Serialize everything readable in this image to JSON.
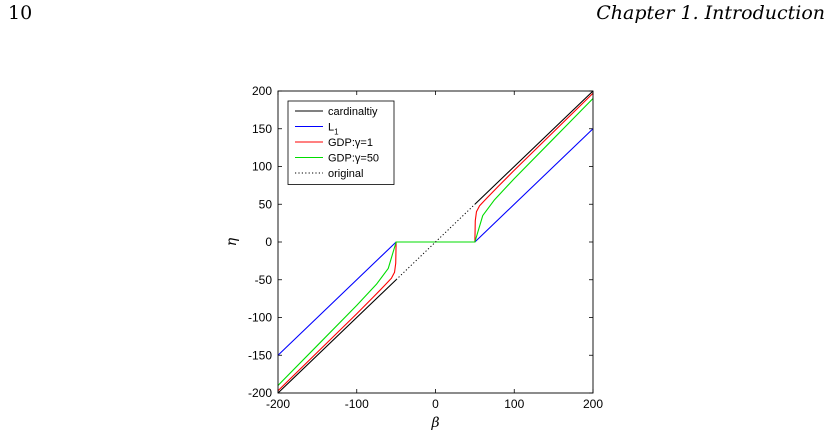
{
  "page": {
    "page_number": "10",
    "running_head": "Chapter 1.  Introduction"
  },
  "chart_data": {
    "type": "line",
    "xlabel": "β",
    "ylabel": "η",
    "xlim": [
      -200,
      200
    ],
    "ylim": [
      -200,
      200
    ],
    "xticks": [
      "-200",
      "-100",
      "0",
      "100",
      "200"
    ],
    "yticks": [
      "200",
      "150",
      "100",
      "50",
      "0",
      "-50",
      "-100",
      "-150",
      "-200"
    ],
    "legend_position": "top-left",
    "series": [
      {
        "name": "cardinaltiy",
        "name_sub": "",
        "color": "#000000",
        "style": "solid",
        "segments": [
          [
            [
              -200,
              -200
            ],
            [
              -50,
              -50
            ]
          ],
          [
            [
              -50,
              0
            ],
            [
              50,
              0
            ]
          ],
          [
            [
              50,
              50
            ],
            [
              200,
              200
            ]
          ]
        ]
      },
      {
        "name": "L",
        "name_sub": "1",
        "color": "#0000ff",
        "style": "solid",
        "segments": [
          [
            [
              -200,
              -150
            ],
            [
              -50,
              0
            ],
            [
              50,
              0
            ],
            [
              200,
              150
            ]
          ]
        ]
      },
      {
        "name": "GDP:γ=1",
        "name_sub": "",
        "color": "#ff0000",
        "style": "solid",
        "segments": [
          [
            [
              -200,
              -197
            ],
            [
              -150,
              -146
            ],
            [
              -100,
              -95
            ],
            [
              -80,
              -74
            ],
            [
              -65,
              -58
            ],
            [
              -56,
              -48
            ],
            [
              -52,
              -40
            ],
            [
              -50.5,
              -28
            ],
            [
              -50,
              0
            ],
            [
              50,
              0
            ],
            [
              50.5,
              28
            ],
            [
              52,
              40
            ],
            [
              56,
              48
            ],
            [
              65,
              58
            ],
            [
              80,
              74
            ],
            [
              100,
              95
            ],
            [
              150,
              146
            ],
            [
              200,
              197
            ]
          ]
        ]
      },
      {
        "name": "GDP:γ=50",
        "name_sub": "",
        "color": "#00dd00",
        "style": "solid",
        "segments": [
          [
            [
              -200,
              -190
            ],
            [
              -150,
              -137
            ],
            [
              -100,
              -84
            ],
            [
              -75,
              -56
            ],
            [
              -60,
              -35
            ],
            [
              -50,
              0
            ],
            [
              50,
              0
            ],
            [
              60,
              35
            ],
            [
              75,
              56
            ],
            [
              100,
              84
            ],
            [
              150,
              137
            ],
            [
              200,
              190
            ]
          ]
        ]
      },
      {
        "name": "original",
        "name_sub": "",
        "color": "#000000",
        "style": "dotted",
        "segments": [
          [
            [
              -50,
              -50
            ],
            [
              50,
              50
            ]
          ]
        ]
      }
    ]
  }
}
